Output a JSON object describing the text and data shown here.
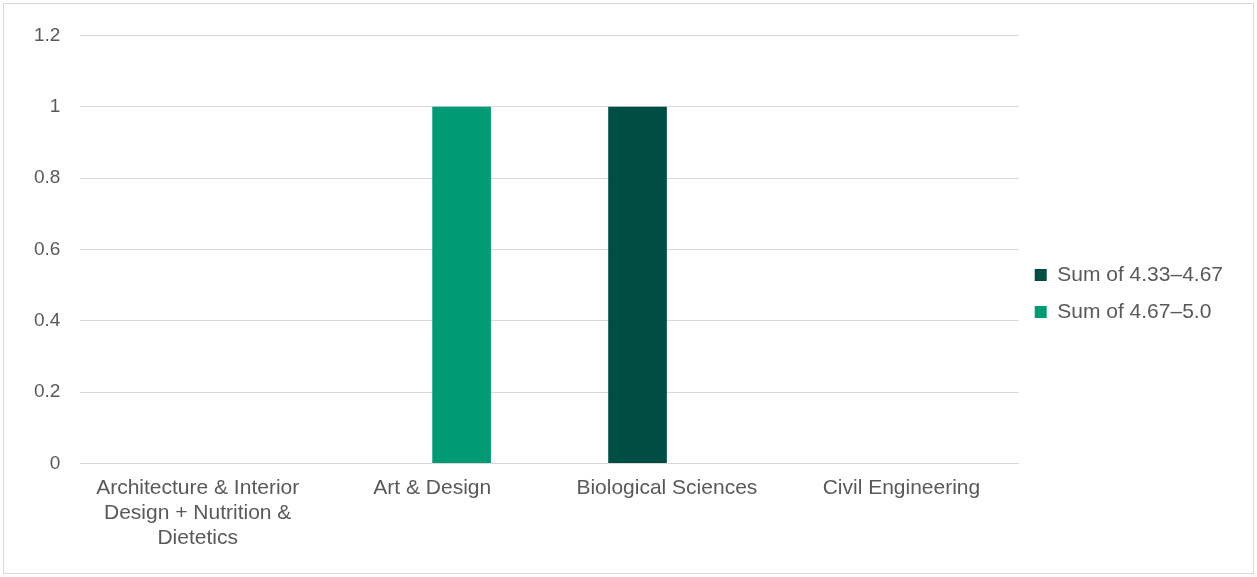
{
  "chart_data": {
    "type": "bar",
    "categories": [
      "Architecture & Interior Design + Nutrition & Dietetics",
      "Art & Design",
      "Biological Sciences",
      "Civil Engineering"
    ],
    "series": [
      {
        "name": "Sum of 4.33–4.67",
        "color": "#004d44",
        "values": [
          null,
          null,
          1,
          null
        ]
      },
      {
        "name": "Sum of 4.67–5.0",
        "color": "#009a74",
        "values": [
          null,
          1,
          null,
          null
        ]
      }
    ],
    "ylim": [
      0,
      1.2
    ],
    "yticks": [
      0,
      0.2,
      0.4,
      0.6,
      0.8,
      1,
      1.2
    ],
    "grid": "y",
    "legend": "right"
  }
}
